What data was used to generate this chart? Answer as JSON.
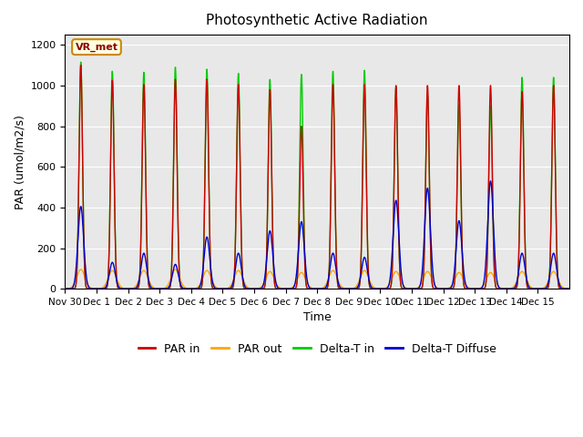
{
  "title": "Photosynthetic Active Radiation",
  "ylabel": "PAR (umol/m2/s)",
  "xlabel": "Time",
  "ylim": [
    0,
    1250
  ],
  "yticks": [
    0,
    200,
    400,
    600,
    800,
    1000,
    1200
  ],
  "bg_color": "#e8e8e8",
  "legend_label": "VR_met",
  "colors": {
    "par_in": "#cc0000",
    "par_out": "#ffa500",
    "delta_t_in": "#00cc00",
    "delta_t_diffuse": "#0000cc"
  },
  "xtick_labels": [
    "Nov 30",
    "Dec 1",
    "Dec 2",
    "Dec 3",
    "Dec 4",
    "Dec 5",
    "Dec 6",
    "Dec 7",
    "Dec 8",
    "Dec 9",
    "Dec 10",
    "Dec 11",
    "Dec 12",
    "Dec 13",
    "Dec 14",
    "Dec 15"
  ],
  "day_peaks": {
    "par_in": [
      1100,
      1025,
      1005,
      1030,
      1030,
      1005,
      980,
      800,
      1005,
      1005,
      1000,
      1000,
      1000,
      1000,
      970,
      1000
    ],
    "par_out": [
      95,
      90,
      90,
      95,
      90,
      90,
      85,
      80,
      90,
      90,
      85,
      85,
      80,
      80,
      85,
      85
    ],
    "delta_t_in": [
      1115,
      1070,
      1065,
      1090,
      1080,
      1060,
      1030,
      1055,
      1070,
      1075,
      990,
      955,
      905,
      900,
      1040,
      1040
    ],
    "delta_t_diffuse": [
      405,
      130,
      175,
      120,
      255,
      175,
      285,
      330,
      175,
      155,
      435,
      495,
      335,
      530,
      175,
      175
    ]
  },
  "sigma_par_in": 0.055,
  "sigma_par_out": 0.13,
  "sigma_dt_in": 0.055,
  "sigma_dt_diffuse": 0.09
}
